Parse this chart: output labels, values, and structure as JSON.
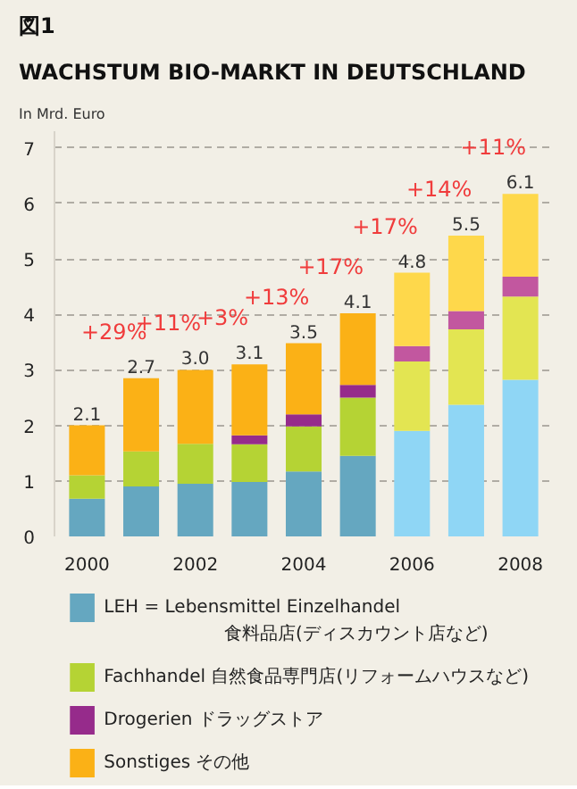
{
  "chart_data": {
    "type": "bar",
    "stacked": true,
    "title": "WACHSTUM BIO-MARKT IN DEUTSCHLAND",
    "ylabel": "In Mrd. Euro",
    "x": [
      2000,
      2001,
      2002,
      2003,
      2004,
      2005,
      2006,
      2007,
      2008
    ],
    "xlim": [
      1999.4,
      2008.6
    ],
    "xticks": [
      2000,
      2002,
      2004,
      2006,
      2008
    ],
    "ylim": [
      0,
      7.3
    ],
    "yticks": [
      0,
      1,
      2,
      3,
      4,
      5,
      6,
      7
    ],
    "grid": "y",
    "legend": "bottom",
    "series": [
      {
        "name": "LEH = Lebensmittel Einzelhandel\n食料品店(ディスカウント店など)",
        "color": "#65a7c0",
        "colors": [
          "#65a7c0",
          "#65a7c0",
          "#65a7c0",
          "#65a7c0",
          "#65a7c0",
          "#65a7c0",
          "#8fd6f5",
          "#8fd6f5",
          "#8fd6f5"
        ],
        "values": [
          0.68,
          0.9,
          0.95,
          0.98,
          1.17,
          1.45,
          1.9,
          2.37,
          2.82
        ]
      },
      {
        "name": "Fachhandel 自然食品専門店(リフォームハウスなど)",
        "color": "#b5d334",
        "colors": [
          "#b5d334",
          "#b5d334",
          "#b5d334",
          "#b5d334",
          "#b5d334",
          "#b5d334",
          "#e3e552",
          "#e3e552",
          "#e3e552"
        ],
        "values": [
          0.42,
          0.63,
          0.72,
          0.68,
          0.81,
          1.05,
          1.25,
          1.36,
          1.5
        ]
      },
      {
        "name": "Drogerien     ドラッグストア",
        "color": "#962b8b",
        "colors": [
          "#962b8b",
          "#962b8b",
          "#962b8b",
          "#962b8b",
          "#962b8b",
          "#962b8b",
          "#c2579f",
          "#c2579f",
          "#c2579f"
        ],
        "values": [
          null,
          null,
          null,
          0.16,
          0.22,
          0.23,
          0.28,
          0.33,
          0.36
        ]
      },
      {
        "name": "Sonstiges      その他",
        "color": "#fbb116",
        "colors": [
          "#fbb116",
          "#fbb116",
          "#fbb116",
          "#fbb116",
          "#fbb116",
          "#fbb116",
          "#fed84b",
          "#fed84b",
          "#fed84b"
        ],
        "values": [
          0.9,
          1.32,
          1.33,
          1.28,
          1.28,
          1.29,
          1.32,
          1.36,
          1.49
        ]
      }
    ],
    "totals": [
      "2.1",
      "2.7",
      "3.0",
      "3.1",
      "3.5",
      "4.1",
      "4.8",
      "5.5",
      "6.1"
    ],
    "annotations": [
      "図1",
      "+29%",
      "+11%",
      "+3%",
      "+13%",
      "+17%",
      "+17%",
      "+14%",
      "+11%"
    ]
  }
}
